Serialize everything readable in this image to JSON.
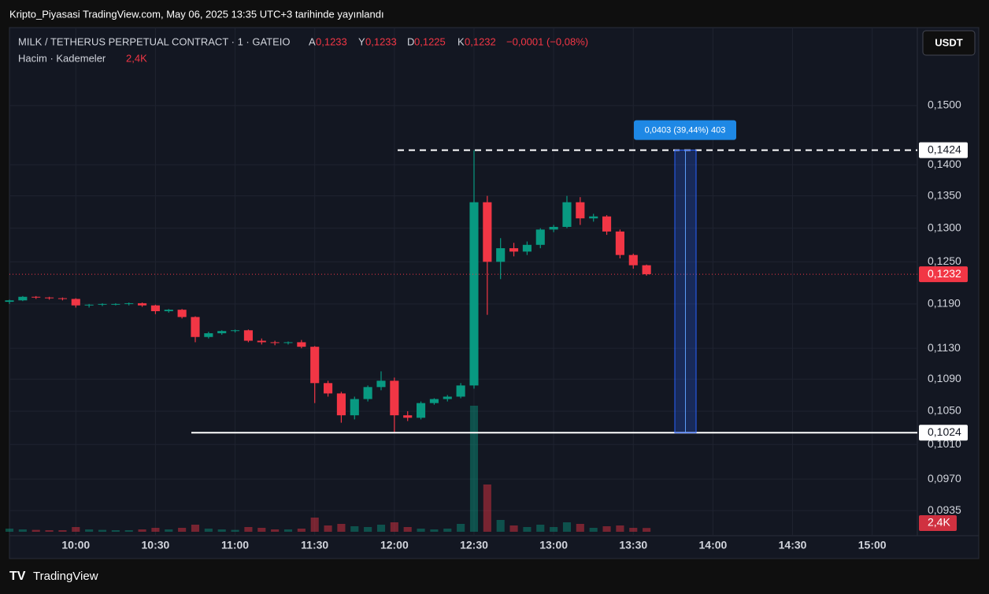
{
  "header": {
    "title": "Kripto_Piyasasi TradingView.com, May 06, 2025 13:35 UTC+3 tarihinde yayınlandı",
    "footer": "TradingView"
  },
  "chart_data": {
    "type": "candlestick",
    "symbol": "MILK / TETHERUS PERPETUAL CONTRACT · 1 · GATEIO",
    "ohlc_legend": [
      {
        "key": "A",
        "label": "0,1233"
      },
      {
        "key": "Y",
        "label": "0,1233"
      },
      {
        "key": "D",
        "label": "0,1225"
      },
      {
        "key": "K",
        "label": "0,1232"
      }
    ],
    "change_label": "−0,0001 (−0,08%)",
    "volume_title": "Hacim · Kademeler",
    "volume_label": "2,4K",
    "currency": "USDT",
    "x": [
      "09:35",
      "09:40",
      "09:45",
      "09:50",
      "09:55",
      "10:00",
      "10:05",
      "10:10",
      "10:15",
      "10:20",
      "10:25",
      "10:30",
      "10:35",
      "10:40",
      "10:45",
      "10:50",
      "10:55",
      "11:00",
      "11:05",
      "11:10",
      "11:15",
      "11:20",
      "11:25",
      "11:30",
      "11:35",
      "11:40",
      "11:45",
      "11:50",
      "11:55",
      "12:00",
      "12:05",
      "12:10",
      "12:15",
      "12:20",
      "12:25",
      "12:30",
      "12:35",
      "12:40",
      "12:45",
      "12:50",
      "12:55",
      "13:00",
      "13:05",
      "13:10",
      "13:15",
      "13:20",
      "13:25",
      "13:30",
      "13:35"
    ],
    "open": [
      0.1193,
      0.1195,
      0.12,
      0.1199,
      0.1198,
      0.1197,
      0.1188,
      0.1189,
      0.119,
      0.119,
      0.1191,
      0.1188,
      0.118,
      0.1182,
      0.1172,
      0.1145,
      0.115,
      0.1153,
      0.1154,
      0.114,
      0.1138,
      0.1137,
      0.1138,
      0.1132,
      0.1085,
      0.1072,
      0.1045,
      0.1065,
      0.108,
      0.1088,
      0.1045,
      0.1042,
      0.106,
      0.1065,
      0.1068,
      0.1082,
      0.134,
      0.125,
      0.127,
      0.1265,
      0.1275,
      0.1298,
      0.1302,
      0.134,
      0.1315,
      0.1318,
      0.1295,
      0.126,
      0.1245
    ],
    "high": [
      0.1196,
      0.1201,
      0.1201,
      0.12,
      0.1199,
      0.1198,
      0.119,
      0.1191,
      0.1191,
      0.1192,
      0.1192,
      0.1189,
      0.1183,
      0.1183,
      0.1173,
      0.1152,
      0.1154,
      0.1155,
      0.1155,
      0.1143,
      0.114,
      0.1139,
      0.1141,
      0.1133,
      0.1088,
      0.1074,
      0.1068,
      0.1082,
      0.11,
      0.1092,
      0.105,
      0.1062,
      0.1066,
      0.107,
      0.1085,
      0.1424,
      0.135,
      0.1285,
      0.1278,
      0.128,
      0.13,
      0.1305,
      0.135,
      0.1348,
      0.1322,
      0.132,
      0.1298,
      0.1262,
      0.1246
    ],
    "low": [
      0.119,
      0.1194,
      0.1197,
      0.1196,
      0.1195,
      0.1185,
      0.1185,
      0.1187,
      0.1188,
      0.1188,
      0.1186,
      0.1176,
      0.1178,
      0.117,
      0.1138,
      0.1143,
      0.1148,
      0.1151,
      0.1138,
      0.1135,
      0.1134,
      0.1135,
      0.113,
      0.106,
      0.1068,
      0.1036,
      0.104,
      0.1062,
      0.1076,
      0.1024,
      0.1038,
      0.104,
      0.1058,
      0.1062,
      0.1066,
      0.1078,
      0.1175,
      0.1225,
      0.1258,
      0.126,
      0.127,
      0.1294,
      0.13,
      0.1305,
      0.131,
      0.129,
      0.1255,
      0.124,
      0.123
    ],
    "close": [
      0.1195,
      0.12,
      0.1199,
      0.1198,
      0.1197,
      0.1188,
      0.1189,
      0.119,
      0.119,
      0.1191,
      0.1188,
      0.118,
      0.1182,
      0.1172,
      0.1145,
      0.115,
      0.1153,
      0.1154,
      0.114,
      0.1138,
      0.1137,
      0.1138,
      0.1132,
      0.1085,
      0.1072,
      0.1045,
      0.1065,
      0.108,
      0.1088,
      0.1045,
      0.1042,
      0.106,
      0.1065,
      0.1068,
      0.1082,
      0.134,
      0.125,
      0.127,
      0.1265,
      0.1275,
      0.1298,
      0.1302,
      0.134,
      0.1315,
      0.1318,
      0.1295,
      0.126,
      0.1245,
      0.1232
    ],
    "volume": [
      2000,
      1500,
      1200,
      1000,
      1000,
      3000,
      1500,
      1200,
      1000,
      1000,
      1500,
      2500,
      1500,
      2500,
      4500,
      2000,
      1500,
      1200,
      3000,
      2500,
      1500,
      1500,
      2000,
      9000,
      4000,
      5000,
      3500,
      3000,
      4500,
      6000,
      3000,
      2000,
      1500,
      2000,
      5000,
      80000,
      30000,
      7500,
      4000,
      3000,
      4500,
      3000,
      6000,
      5000,
      2500,
      3500,
      4000,
      2500,
      2400
    ],
    "up_color": "#089981",
    "down_color": "#f23645",
    "log_scale": true,
    "grid": true,
    "xlim": [
      "09:35",
      "15:17"
    ],
    "xticks": [
      "10:00",
      "10:30",
      "11:00",
      "11:30",
      "12:00",
      "12:30",
      "13:00",
      "13:30",
      "14:00",
      "14:30",
      "15:00"
    ],
    "ylim": [
      0.0908,
      0.1643
    ],
    "yticks": [
      {
        "value": 0.15,
        "label": "0,1500"
      },
      {
        "value": 0.14,
        "label": "0,1400"
      },
      {
        "value": 0.135,
        "label": "0,1350"
      },
      {
        "value": 0.13,
        "label": "0,1300"
      },
      {
        "value": 0.125,
        "label": "0,1250"
      },
      {
        "value": 0.119,
        "label": "0,1190"
      },
      {
        "value": 0.113,
        "label": "0,1130"
      },
      {
        "value": 0.109,
        "label": "0,1090"
      },
      {
        "value": 0.105,
        "label": "0,1050"
      },
      {
        "value": 0.101,
        "label": "0,1010"
      },
      {
        "value": 0.097,
        "label": "0,0970"
      },
      {
        "value": 0.0935,
        "label": "0,0935"
      }
    ],
    "levels": [
      {
        "value": 0.1424,
        "label": "0,1424"
      },
      {
        "value": 0.1232,
        "label": "0,1232"
      },
      {
        "value": 0.1024,
        "label": "0,1024"
      }
    ],
    "measure_label": "0,0403 (39,44%) 403"
  }
}
